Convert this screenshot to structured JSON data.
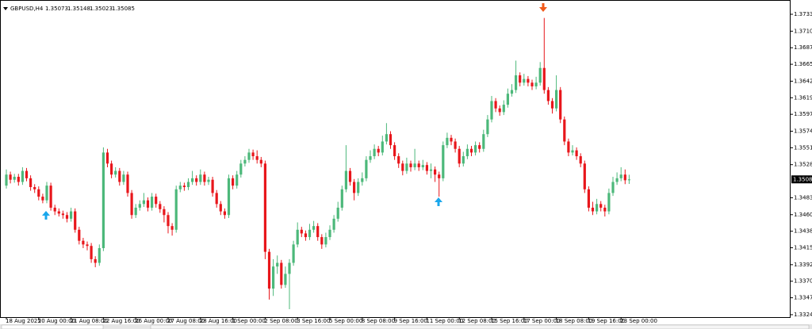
{
  "chart_data": {
    "type": "candlestick",
    "symbol": "GBPUSD,H4",
    "up_color": "#4cb87a",
    "down_color": "#e8161b",
    "ylim": [
      1.33212,
      1.37524
    ],
    "yticks": [
      {
        "value": 1.3733,
        "label": "1.37330"
      },
      {
        "value": 1.371,
        "label": "1.37100"
      },
      {
        "value": 1.36875,
        "label": "1.36875"
      },
      {
        "value": 1.3665,
        "label": "1.36650"
      },
      {
        "value": 1.3642,
        "label": "1.36420"
      },
      {
        "value": 1.36195,
        "label": "1.36195"
      },
      {
        "value": 1.3597,
        "label": "1.35970"
      },
      {
        "value": 1.3574,
        "label": "1.35740"
      },
      {
        "value": 1.35515,
        "label": "1.35515"
      },
      {
        "value": 1.35285,
        "label": "1.35285"
      },
      {
        "value": 1.34835,
        "label": "1.34835"
      },
      {
        "value": 1.34605,
        "label": "1.34605"
      },
      {
        "value": 1.3438,
        "label": "1.34380"
      },
      {
        "value": 1.34155,
        "label": "1.34155"
      },
      {
        "value": 1.33925,
        "label": "1.33925"
      },
      {
        "value": 1.337,
        "label": "1.33700"
      },
      {
        "value": 1.33475,
        "label": "1.33475"
      },
      {
        "value": 1.33245,
        "label": "1.33245"
      }
    ],
    "categories": [
      "18 Aug 2025",
      null,
      null,
      null,
      null,
      null,
      null,
      null,
      "20 Aug 00:00",
      null,
      null,
      null,
      null,
      null,
      null,
      null,
      "21 Aug 08:00",
      null,
      null,
      null,
      null,
      null,
      null,
      null,
      "22 Aug 16:00",
      null,
      null,
      null,
      null,
      null,
      null,
      null,
      "26 Aug 00:00",
      null,
      null,
      null,
      null,
      null,
      null,
      null,
      "27 Aug 08:00",
      null,
      null,
      null,
      null,
      null,
      null,
      null,
      "28 Aug 16:00",
      null,
      null,
      null,
      null,
      null,
      null,
      null,
      "1 Sep 00:00",
      null,
      null,
      null,
      null,
      null,
      null,
      null,
      "2 Sep 08:00",
      null,
      null,
      null,
      null,
      null,
      null,
      null,
      "3 Sep 16:00",
      null,
      null,
      null,
      null,
      null,
      null,
      null,
      "5 Sep 00:00",
      null,
      null,
      null,
      null,
      null,
      null,
      null,
      "8 Sep 08:00",
      null,
      null,
      null,
      null,
      null,
      null,
      null,
      "9 Sep 16:00",
      null,
      null,
      null,
      null,
      null,
      null,
      null,
      "11 Sep 00:00",
      null,
      null,
      null,
      null,
      null,
      null,
      null,
      "12 Sep 08:00",
      null,
      null,
      null,
      null,
      null,
      null,
      null,
      "15 Sep 16:00",
      null,
      null,
      null,
      null,
      null,
      null,
      null,
      "17 Sep 00:00",
      null,
      null,
      null,
      null,
      null,
      null,
      null,
      "18 Sep 08:00",
      null,
      null,
      null,
      null,
      null,
      null,
      null,
      "19 Sep 16:00",
      null,
      null,
      null,
      null,
      null,
      null,
      null,
      "23 Sep 00:00",
      null,
      null
    ],
    "candles": [
      [
        1.35,
        1.3522,
        1.3496,
        1.3515
      ],
      [
        1.3515,
        1.3519,
        1.3503,
        1.3508
      ],
      [
        1.3508,
        1.3516,
        1.3504,
        1.3512
      ],
      [
        1.3512,
        1.3516,
        1.35,
        1.3505
      ],
      [
        1.3505,
        1.3525,
        1.3501,
        1.352
      ],
      [
        1.352,
        1.3524,
        1.3506,
        1.351
      ],
      [
        1.351,
        1.3514,
        1.3493,
        1.3498
      ],
      [
        1.3498,
        1.3502,
        1.349,
        1.3495
      ],
      [
        1.3495,
        1.3499,
        1.348,
        1.3485
      ],
      [
        1.3485,
        1.3489,
        1.3476,
        1.348
      ],
      [
        1.348,
        1.3505,
        1.3476,
        1.35
      ],
      [
        1.35,
        1.3504,
        1.3466,
        1.347
      ],
      [
        1.347,
        1.3474,
        1.346,
        1.3465
      ],
      [
        1.3465,
        1.3469,
        1.3458,
        1.3462
      ],
      [
        1.3462,
        1.3466,
        1.3455,
        1.346
      ],
      [
        1.346,
        1.3464,
        1.345,
        1.3455
      ],
      [
        1.3455,
        1.347,
        1.3451,
        1.3465
      ],
      [
        1.3465,
        1.3469,
        1.3436,
        1.344
      ],
      [
        1.344,
        1.3444,
        1.342,
        1.3425
      ],
      [
        1.3425,
        1.3429,
        1.3415,
        1.342
      ],
      [
        1.342,
        1.3424,
        1.3412,
        1.3418
      ],
      [
        1.3418,
        1.3422,
        1.3395,
        1.34
      ],
      [
        1.34,
        1.3404,
        1.3389,
        1.3395
      ],
      [
        1.3395,
        1.342,
        1.3391,
        1.3415
      ],
      [
        1.3415,
        1.3552,
        1.3411,
        1.3545
      ],
      [
        1.3545,
        1.355,
        1.3525,
        1.353
      ],
      [
        1.353,
        1.3534,
        1.351,
        1.3515
      ],
      [
        1.3515,
        1.3525,
        1.3511,
        1.352
      ],
      [
        1.352,
        1.3524,
        1.35,
        1.3505
      ],
      [
        1.3505,
        1.352,
        1.3501,
        1.3515
      ],
      [
        1.3515,
        1.3519,
        1.3485,
        1.349
      ],
      [
        1.349,
        1.3494,
        1.3455,
        1.346
      ],
      [
        1.346,
        1.3475,
        1.3456,
        1.347
      ],
      [
        1.347,
        1.348,
        1.3466,
        1.3475
      ],
      [
        1.3475,
        1.349,
        1.3471,
        1.348
      ],
      [
        1.348,
        1.3484,
        1.3465,
        1.347
      ],
      [
        1.347,
        1.349,
        1.3466,
        1.3485
      ],
      [
        1.3485,
        1.3489,
        1.347,
        1.3475
      ],
      [
        1.3475,
        1.3479,
        1.3463,
        1.3468
      ],
      [
        1.3468,
        1.3472,
        1.345,
        1.346
      ],
      [
        1.346,
        1.3464,
        1.3435,
        1.3445
      ],
      [
        1.3445,
        1.3449,
        1.3432,
        1.344
      ],
      [
        1.344,
        1.35,
        1.3436,
        1.3495
      ],
      [
        1.3495,
        1.3505,
        1.3491,
        1.35
      ],
      [
        1.35,
        1.3504,
        1.3493,
        1.3498
      ],
      [
        1.3498,
        1.351,
        1.3494,
        1.3505
      ],
      [
        1.3505,
        1.352,
        1.3501,
        1.351
      ],
      [
        1.351,
        1.3514,
        1.35,
        1.3505
      ],
      [
        1.3505,
        1.3522,
        1.3501,
        1.3515
      ],
      [
        1.3515,
        1.3519,
        1.35,
        1.3505
      ],
      [
        1.3505,
        1.3512,
        1.3501,
        1.3508
      ],
      [
        1.3508,
        1.3512,
        1.3485,
        1.349
      ],
      [
        1.349,
        1.3494,
        1.347,
        1.3475
      ],
      [
        1.3475,
        1.3479,
        1.346,
        1.3465
      ],
      [
        1.3465,
        1.3469,
        1.3455,
        1.346
      ],
      [
        1.346,
        1.3515,
        1.3456,
        1.351
      ],
      [
        1.351,
        1.3514,
        1.3495,
        1.35
      ],
      [
        1.35,
        1.352,
        1.3496,
        1.3515
      ],
      [
        1.3515,
        1.3535,
        1.3511,
        1.353
      ],
      [
        1.353,
        1.354,
        1.3526,
        1.3535
      ],
      [
        1.3535,
        1.355,
        1.3531,
        1.3545
      ],
      [
        1.3545,
        1.3549,
        1.3535,
        1.354
      ],
      [
        1.354,
        1.3548,
        1.353,
        1.3535
      ],
      [
        1.3535,
        1.3539,
        1.3525,
        1.353
      ],
      [
        1.353,
        1.3534,
        1.34,
        1.341
      ],
      [
        1.341,
        1.3414,
        1.3345,
        1.336
      ],
      [
        1.336,
        1.34,
        1.335,
        1.339
      ],
      [
        1.339,
        1.3405,
        1.338,
        1.3395
      ],
      [
        1.3395,
        1.3399,
        1.336,
        1.3365
      ],
      [
        1.3365,
        1.339,
        1.3361,
        1.338
      ],
      [
        1.338,
        1.34,
        1.3332,
        1.3395
      ],
      [
        1.3395,
        1.3425,
        1.3391,
        1.342
      ],
      [
        1.342,
        1.345,
        1.3416,
        1.344
      ],
      [
        1.344,
        1.3444,
        1.343,
        1.3435
      ],
      [
        1.3435,
        1.3439,
        1.3425,
        1.343
      ],
      [
        1.343,
        1.3448,
        1.3426,
        1.344
      ],
      [
        1.344,
        1.3452,
        1.3436,
        1.3445
      ],
      [
        1.3445,
        1.3449,
        1.3425,
        1.343
      ],
      [
        1.343,
        1.3434,
        1.3414,
        1.342
      ],
      [
        1.342,
        1.3436,
        1.3416,
        1.343
      ],
      [
        1.343,
        1.3446,
        1.3426,
        1.344
      ],
      [
        1.344,
        1.346,
        1.3436,
        1.3455
      ],
      [
        1.3455,
        1.3478,
        1.3451,
        1.347
      ],
      [
        1.347,
        1.35,
        1.3466,
        1.3495
      ],
      [
        1.3495,
        1.3555,
        1.3491,
        1.352
      ],
      [
        1.352,
        1.3524,
        1.35,
        1.3505
      ],
      [
        1.3505,
        1.3509,
        1.348,
        1.349
      ],
      [
        1.349,
        1.351,
        1.3486,
        1.3505
      ],
      [
        1.3505,
        1.3518,
        1.35,
        1.351
      ],
      [
        1.351,
        1.354,
        1.3506,
        1.3535
      ],
      [
        1.3535,
        1.3548,
        1.3531,
        1.354
      ],
      [
        1.354,
        1.3556,
        1.3536,
        1.355
      ],
      [
        1.355,
        1.3554,
        1.354,
        1.3545
      ],
      [
        1.3545,
        1.3568,
        1.3541,
        1.356
      ],
      [
        1.356,
        1.3585,
        1.3556,
        1.357
      ],
      [
        1.357,
        1.3574,
        1.355,
        1.3555
      ],
      [
        1.3555,
        1.3559,
        1.3535,
        1.354
      ],
      [
        1.354,
        1.3544,
        1.3524,
        1.353
      ],
      [
        1.353,
        1.3534,
        1.3514,
        1.352
      ],
      [
        1.352,
        1.3538,
        1.3516,
        1.353
      ],
      [
        1.353,
        1.3534,
        1.3519,
        1.3525
      ],
      [
        1.3525,
        1.355,
        1.3521,
        1.353
      ],
      [
        1.353,
        1.3534,
        1.352,
        1.3525
      ],
      [
        1.3525,
        1.3535,
        1.3521,
        1.3528
      ],
      [
        1.3528,
        1.3532,
        1.3515,
        1.352
      ],
      [
        1.352,
        1.353,
        1.351,
        1.3522
      ],
      [
        1.3522,
        1.3526,
        1.3505,
        1.3515
      ],
      [
        1.3515,
        1.3519,
        1.3485,
        1.351
      ],
      [
        1.351,
        1.356,
        1.3506,
        1.3555
      ],
      [
        1.3555,
        1.3572,
        1.3551,
        1.3565
      ],
      [
        1.3565,
        1.3569,
        1.3555,
        1.356
      ],
      [
        1.356,
        1.3564,
        1.3545,
        1.355
      ],
      [
        1.355,
        1.3554,
        1.3525,
        1.353
      ],
      [
        1.353,
        1.3546,
        1.3526,
        1.354
      ],
      [
        1.354,
        1.3556,
        1.3536,
        1.355
      ],
      [
        1.355,
        1.3554,
        1.354,
        1.3545
      ],
      [
        1.3545,
        1.356,
        1.3541,
        1.3555
      ],
      [
        1.3555,
        1.3559,
        1.3545,
        1.355
      ],
      [
        1.355,
        1.3576,
        1.3546,
        1.357
      ],
      [
        1.357,
        1.3596,
        1.3566,
        1.359
      ],
      [
        1.359,
        1.3622,
        1.3586,
        1.3615
      ],
      [
        1.3615,
        1.3619,
        1.36,
        1.3605
      ],
      [
        1.3605,
        1.3609,
        1.3595,
        1.36
      ],
      [
        1.36,
        1.3616,
        1.3596,
        1.361
      ],
      [
        1.361,
        1.3632,
        1.3606,
        1.3625
      ],
      [
        1.3625,
        1.3638,
        1.3621,
        1.363
      ],
      [
        1.363,
        1.367,
        1.3626,
        1.365
      ],
      [
        1.365,
        1.3654,
        1.3635,
        1.364
      ],
      [
        1.364,
        1.3652,
        1.3636,
        1.3645
      ],
      [
        1.3645,
        1.3649,
        1.3635,
        1.364
      ],
      [
        1.364,
        1.3644,
        1.363,
        1.3635
      ],
      [
        1.3635,
        1.3648,
        1.3631,
        1.364
      ],
      [
        1.364,
        1.3668,
        1.3636,
        1.366
      ],
      [
        1.366,
        1.3728,
        1.3625,
        1.363
      ],
      [
        1.363,
        1.3634,
        1.361,
        1.3615
      ],
      [
        1.3615,
        1.3619,
        1.3598,
        1.3605
      ],
      [
        1.3605,
        1.365,
        1.3601,
        1.363
      ],
      [
        1.363,
        1.3634,
        1.3585,
        1.359
      ],
      [
        1.359,
        1.3594,
        1.3555,
        1.356
      ],
      [
        1.356,
        1.3564,
        1.354,
        1.3545
      ],
      [
        1.3545,
        1.3555,
        1.3541,
        1.3548
      ],
      [
        1.3548,
        1.3552,
        1.3535,
        1.354
      ],
      [
        1.354,
        1.3544,
        1.3525,
        1.353
      ],
      [
        1.353,
        1.3534,
        1.349,
        1.3495
      ],
      [
        1.3495,
        1.3499,
        1.3465,
        1.347
      ],
      [
        1.347,
        1.3478,
        1.346,
        1.3465
      ],
      [
        1.3465,
        1.3482,
        1.3461,
        1.3475
      ],
      [
        1.3475,
        1.3479,
        1.3465,
        1.347
      ],
      [
        1.347,
        1.3474,
        1.3458,
        1.3465
      ],
      [
        1.3465,
        1.3496,
        1.3461,
        1.349
      ],
      [
        1.349,
        1.3512,
        1.3486,
        1.3505
      ],
      [
        1.3505,
        1.3518,
        1.3501,
        1.351
      ],
      [
        1.351,
        1.3525,
        1.3506,
        1.3515
      ],
      [
        1.3515,
        1.3522,
        1.3502,
        1.35073
      ],
      [
        1.35073,
        1.35148,
        1.35023,
        1.35085
      ]
    ]
  }
}
